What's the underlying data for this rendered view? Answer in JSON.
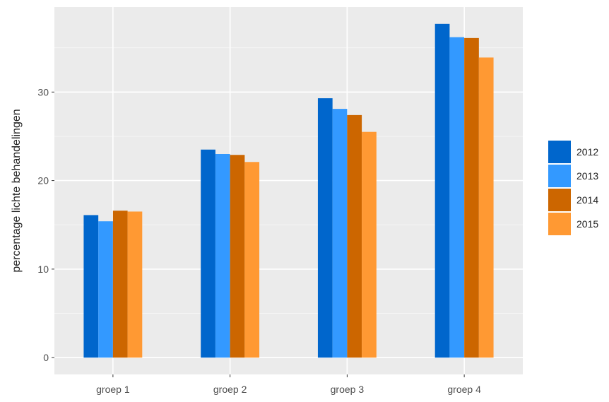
{
  "chart_data": {
    "type": "bar",
    "categories": [
      "groep 1",
      "groep 2",
      "groep 3",
      "groep 4"
    ],
    "series": [
      {
        "name": "2012",
        "color": "#0066cc",
        "values": [
          16.1,
          23.5,
          29.3,
          37.7
        ]
      },
      {
        "name": "2013",
        "color": "#3399ff",
        "values": [
          15.4,
          23.0,
          28.1,
          36.2
        ]
      },
      {
        "name": "2014",
        "color": "#cc6600",
        "values": [
          16.6,
          22.9,
          27.4,
          36.1
        ]
      },
      {
        "name": "2015",
        "color": "#ff9933",
        "values": [
          16.5,
          22.1,
          25.5,
          33.9
        ]
      }
    ],
    "title": "",
    "xlabel": "",
    "ylabel": "percentage lichte behandelingen",
    "ylim": [
      -1.9,
      39.6
    ],
    "yticks": [
      0,
      10,
      20,
      30
    ],
    "grid": true,
    "legend_position": "right"
  }
}
